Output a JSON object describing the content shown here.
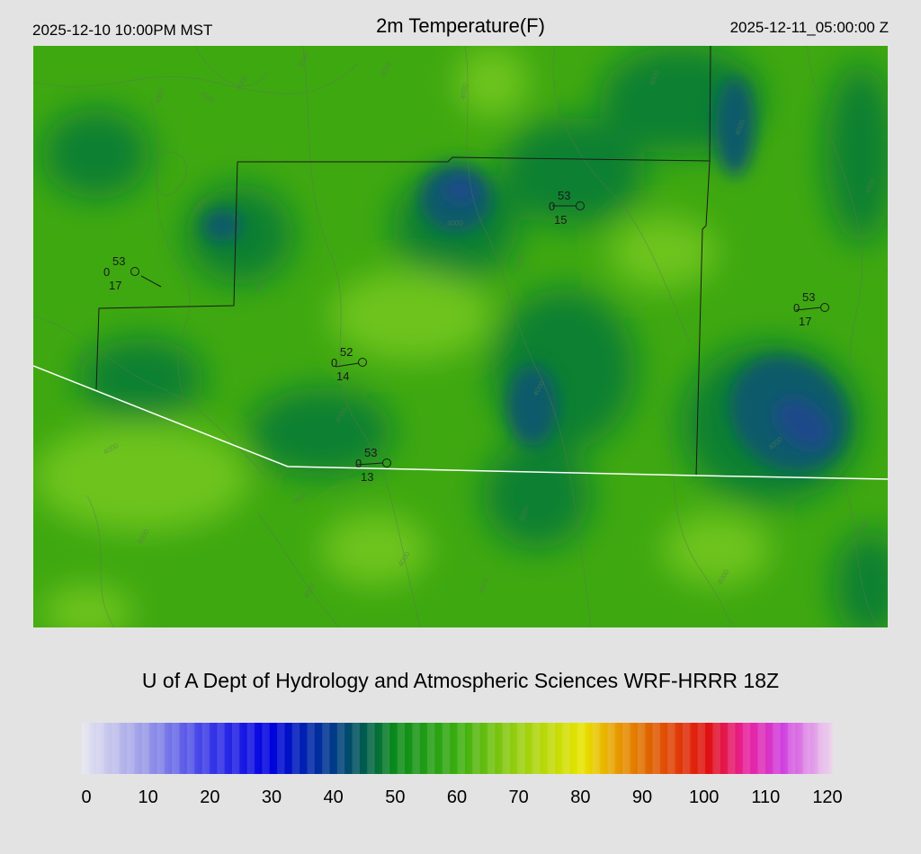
{
  "header": {
    "local_time": "2025-12-10 10:00PM MST",
    "title": "2m Temperature(F)",
    "utc_time": "2025-12-11_05:00:00 Z"
  },
  "credit": "U of A Dept of Hydrology and Atmospheric Sciences WRF-HRRR 18Z",
  "colorbar": {
    "min": 0,
    "max": 120,
    "tick_labels": [
      "0",
      "10",
      "20",
      "30",
      "40",
      "50",
      "60",
      "70",
      "80",
      "90",
      "100",
      "110",
      "120"
    ],
    "color_stops": [
      {
        "value": 0,
        "color": "#e6e6f0"
      },
      {
        "value": 10,
        "color": "#9a9ae8"
      },
      {
        "value": 20,
        "color": "#3a3ae8"
      },
      {
        "value": 30,
        "color": "#0000e0"
      },
      {
        "value": 40,
        "color": "#003a8a"
      },
      {
        "value": 45,
        "color": "#005a50"
      },
      {
        "value": 50,
        "color": "#0a8a1a"
      },
      {
        "value": 60,
        "color": "#3aae10"
      },
      {
        "value": 70,
        "color": "#9ad010"
      },
      {
        "value": 80,
        "color": "#e8e400"
      },
      {
        "value": 85,
        "color": "#e8a000"
      },
      {
        "value": 90,
        "color": "#e06a00"
      },
      {
        "value": 100,
        "color": "#e01010"
      },
      {
        "value": 106,
        "color": "#e8209a"
      },
      {
        "value": 112,
        "color": "#d040e0"
      },
      {
        "value": 120,
        "color": "#ecd8ec"
      }
    ]
  },
  "map": {
    "field_colors": {
      "base": "#3ea811",
      "cool": "#0a8030",
      "cold": "#0e5a6a",
      "coldest": "#1a4a8a",
      "warm": "#6ec41a"
    },
    "boundary_color": "#1a1a1a",
    "highway_color": "#ffffff",
    "contour_color": "#5a7a50",
    "contour_labels": [
      "3500",
      "4000",
      "4000",
      "4000",
      "4000",
      "4000",
      "4000",
      "4000",
      "4500",
      "3500",
      "4000",
      "4000",
      "4000",
      "4500",
      "4000",
      "4000",
      "4000",
      "4000",
      "4000",
      "4000"
    ],
    "stations": [
      {
        "temp": "53",
        "dew": "17",
        "calm": "0"
      },
      {
        "temp": "53",
        "dew": "15",
        "calm": "0"
      },
      {
        "temp": "53",
        "dew": "17",
        "calm": "0"
      },
      {
        "temp": "52",
        "dew": "14",
        "calm": "0"
      },
      {
        "temp": "53",
        "dew": "13",
        "calm": "0"
      }
    ]
  }
}
